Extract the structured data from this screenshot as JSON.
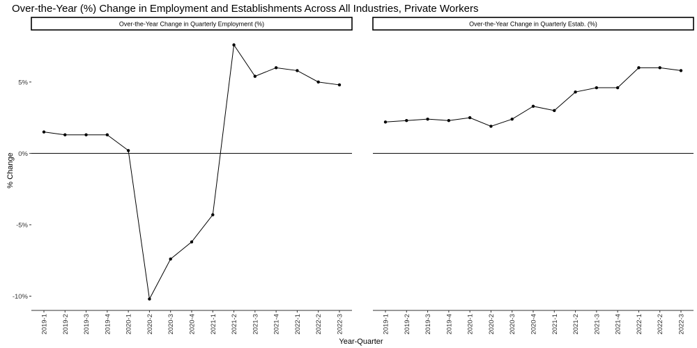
{
  "chart_data": {
    "type": "line",
    "title": "Over-the-Year (%) Change in Employment and Establishments Across All Industries, Private Workers",
    "xlabel": "Year-Quarter",
    "ylabel": "% Change",
    "ylim": [
      -11,
      8.6
    ],
    "yticks": [
      -10,
      -5,
      0,
      5
    ],
    "ytick_labels": [
      "-10%",
      "-5%",
      "0%",
      "5%"
    ],
    "categories": [
      "2019-1",
      "2019-2",
      "2019-3",
      "2019-4",
      "2020-1",
      "2020-2",
      "2020-3",
      "2020-4",
      "2021-1",
      "2021-2",
      "2021-3",
      "2021-4",
      "2022-1",
      "2022-2",
      "2022-3"
    ],
    "reference_line": 0,
    "grid": false,
    "panels": [
      {
        "strip": "Over-the-Year Change in Quarterly Employment (%)",
        "values": [
          1.5,
          1.3,
          1.3,
          1.3,
          0.2,
          -10.2,
          -7.4,
          -6.2,
          -4.3,
          7.6,
          5.4,
          6.0,
          5.8,
          5.0,
          4.8
        ]
      },
      {
        "strip": "Over-the-Year Change in Quarterly Estab. (%)",
        "values": [
          2.2,
          2.3,
          2.4,
          2.3,
          2.5,
          1.9,
          2.4,
          3.3,
          3.0,
          4.3,
          4.6,
          4.6,
          6.0,
          6.0,
          5.8
        ]
      }
    ]
  }
}
